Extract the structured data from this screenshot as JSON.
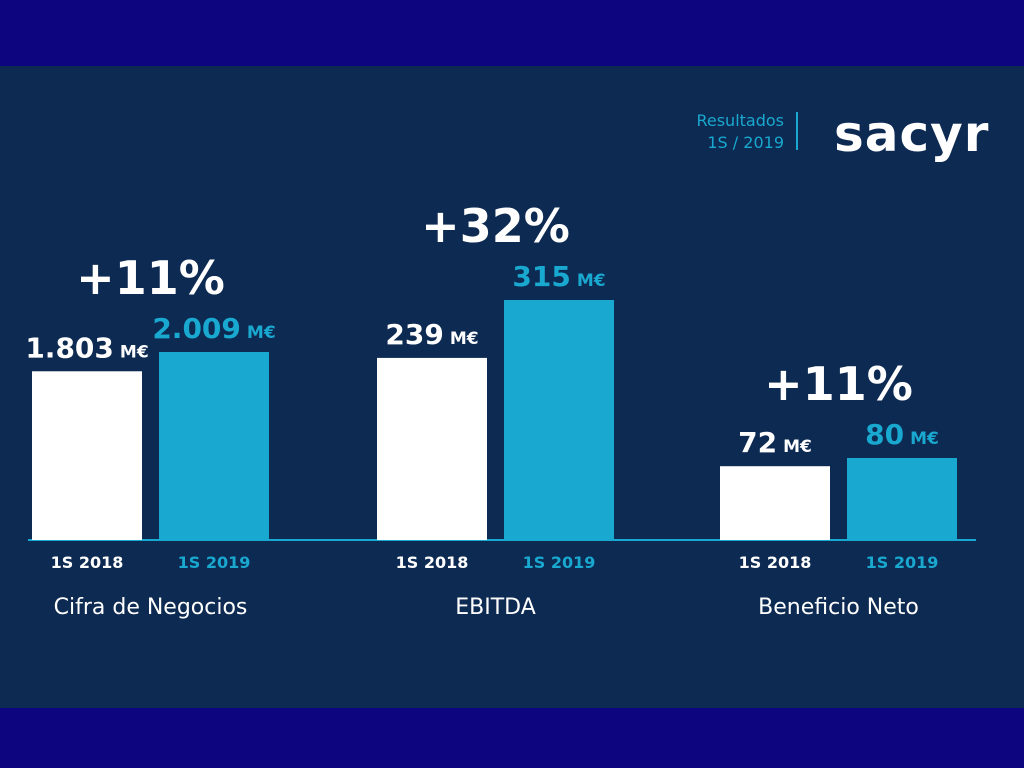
{
  "header": {
    "results_label": "Resultados",
    "period_label": "1S / 2019",
    "logo_text": "sacyr"
  },
  "colors": {
    "background": "#0d2a52",
    "frame": "#0d0580",
    "series_2018": "#ffffff",
    "series_2019": "#19a8cf",
    "text": "#ffffff",
    "accent": "#19a8cf"
  },
  "chart_data": {
    "type": "bar",
    "unit": "M€",
    "categories": [
      "Cifra de Negocios",
      "EBITDA",
      "Beneficio Neto"
    ],
    "series": [
      {
        "name": "1S 2018",
        "values": [
          1803,
          239,
          72
        ],
        "labels": [
          "1.803",
          "239",
          "72"
        ]
      },
      {
        "name": "1S 2019",
        "values": [
          2009,
          315,
          80
        ],
        "labels": [
          "2.009",
          "315",
          "80"
        ]
      }
    ],
    "growth": [
      "+11%",
      "+32%",
      "+11%"
    ],
    "period_labels": [
      "1S 2018",
      "1S 2019"
    ]
  }
}
